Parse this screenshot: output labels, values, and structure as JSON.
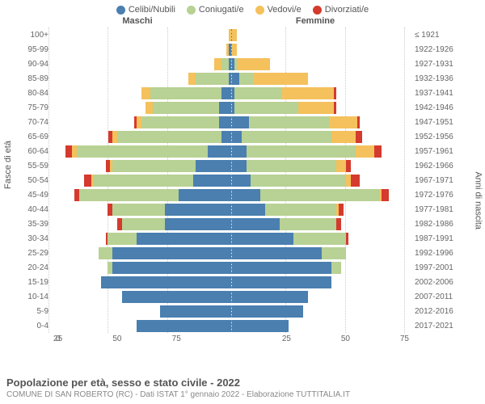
{
  "legend": [
    {
      "label": "Celibi/Nubili",
      "color": "#4a7fb0"
    },
    {
      "label": "Coniugati/e",
      "color": "#b8d194"
    },
    {
      "label": "Vedovi/e",
      "color": "#f4c15c"
    },
    {
      "label": "Divorziati/e",
      "color": "#d43a2e"
    }
  ],
  "header": {
    "male": "Maschi",
    "female": "Femmine",
    "birth_header": ""
  },
  "axis": {
    "left_title": "Fasce di età",
    "right_title": "Anni di nascita",
    "xmax": 75,
    "ticks": [
      0,
      25,
      50,
      75
    ]
  },
  "colors": {
    "celibi": "#4a7fb0",
    "coniugati": "#b8d194",
    "vedovi": "#f4c15c",
    "divorziati": "#d43a2e",
    "grid": "#cccccc",
    "bg": "#ffffff"
  },
  "footer": {
    "title": "Popolazione per età, sesso e stato civile - 2022",
    "sub": "COMUNE DI SAN ROBERTO (RC) - Dati ISTAT 1° gennaio 2022 - Elaborazione TUTTITALIA.IT"
  },
  "rows": [
    {
      "age": "100+",
      "birth": "≤ 1921",
      "m": [
        0,
        0,
        1,
        0
      ],
      "f": [
        0,
        0,
        2,
        0
      ]
    },
    {
      "age": "95-99",
      "birth": "1922-1926",
      "m": [
        1,
        0,
        1,
        0
      ],
      "f": [
        0,
        0,
        2,
        0
      ]
    },
    {
      "age": "90-94",
      "birth": "1927-1931",
      "m": [
        1,
        3,
        3,
        0
      ],
      "f": [
        1,
        1,
        14,
        0
      ]
    },
    {
      "age": "85-89",
      "birth": "1932-1936",
      "m": [
        1,
        14,
        3,
        0
      ],
      "f": [
        3,
        6,
        23,
        0
      ]
    },
    {
      "age": "80-84",
      "birth": "1937-1941",
      "m": [
        4,
        30,
        4,
        0
      ],
      "f": [
        1,
        20,
        22,
        1
      ]
    },
    {
      "age": "75-79",
      "birth": "1942-1946",
      "m": [
        5,
        28,
        3,
        0
      ],
      "f": [
        1,
        27,
        15,
        1
      ]
    },
    {
      "age": "70-74",
      "birth": "1947-1951",
      "m": [
        5,
        33,
        2,
        1
      ],
      "f": [
        7,
        34,
        12,
        1
      ]
    },
    {
      "age": "65-69",
      "birth": "1952-1956",
      "m": [
        4,
        44,
        2,
        2
      ],
      "f": [
        4,
        38,
        10,
        3
      ]
    },
    {
      "age": "60-64",
      "birth": "1957-1961",
      "m": [
        10,
        55,
        2,
        3
      ],
      "f": [
        6,
        46,
        8,
        3
      ]
    },
    {
      "age": "55-59",
      "birth": "1962-1966",
      "m": [
        15,
        35,
        1,
        2
      ],
      "f": [
        6,
        38,
        4,
        2
      ]
    },
    {
      "age": "50-54",
      "birth": "1967-1971",
      "m": [
        16,
        42,
        1,
        3
      ],
      "f": [
        8,
        40,
        2,
        4
      ]
    },
    {
      "age": "45-49",
      "birth": "1972-1976",
      "m": [
        22,
        42,
        0,
        2
      ],
      "f": [
        12,
        50,
        1,
        3
      ]
    },
    {
      "age": "40-44",
      "birth": "1977-1981",
      "m": [
        28,
        22,
        0,
        2
      ],
      "f": [
        14,
        30,
        1,
        2
      ]
    },
    {
      "age": "35-39",
      "birth": "1982-1986",
      "m": [
        28,
        18,
        0,
        2
      ],
      "f": [
        20,
        24,
        0,
        2
      ]
    },
    {
      "age": "30-34",
      "birth": "1987-1991",
      "m": [
        40,
        12,
        0,
        1
      ],
      "f": [
        26,
        22,
        0,
        1
      ]
    },
    {
      "age": "25-29",
      "birth": "1992-1996",
      "m": [
        50,
        6,
        0,
        0
      ],
      "f": [
        38,
        10,
        0,
        0
      ]
    },
    {
      "age": "20-24",
      "birth": "1997-2001",
      "m": [
        50,
        2,
        0,
        0
      ],
      "f": [
        42,
        4,
        0,
        0
      ]
    },
    {
      "age": "15-19",
      "birth": "2002-2006",
      "m": [
        55,
        0,
        0,
        0
      ],
      "f": [
        42,
        0,
        0,
        0
      ]
    },
    {
      "age": "10-14",
      "birth": "2007-2011",
      "m": [
        46,
        0,
        0,
        0
      ],
      "f": [
        32,
        0,
        0,
        0
      ]
    },
    {
      "age": "5-9",
      "birth": "2012-2016",
      "m": [
        30,
        0,
        0,
        0
      ],
      "f": [
        30,
        0,
        0,
        0
      ]
    },
    {
      "age": "0-4",
      "birth": "2017-2021",
      "m": [
        40,
        0,
        0,
        0
      ],
      "f": [
        24,
        0,
        0,
        0
      ]
    }
  ]
}
